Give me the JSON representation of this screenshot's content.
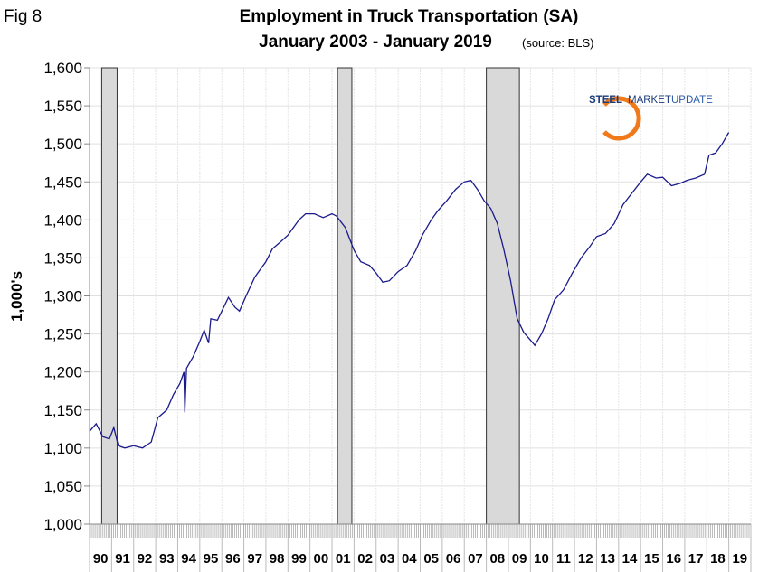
{
  "figure_label": "Fig 8",
  "logo_text": {
    "part1": "STEEL",
    "part2": "MARKET",
    "part3": "UPDATE"
  },
  "chart_data": {
    "type": "line",
    "title": "Employment in Truck Transportation (SA)",
    "subtitle": "January 2003 - January 2019",
    "source_note": "(source: BLS)",
    "ylabel": "1,000's",
    "xlabel": "",
    "ylim": [
      1000,
      1600
    ],
    "yticks": [
      1000,
      1050,
      1100,
      1150,
      1200,
      1250,
      1300,
      1350,
      1400,
      1450,
      1500,
      1550,
      1600
    ],
    "ytick_labels": [
      "1,000",
      "1,050",
      "1,100",
      "1,150",
      "1,200",
      "1,250",
      "1,300",
      "1,350",
      "1,400",
      "1,450",
      "1,500",
      "1,550",
      "1,600"
    ],
    "xlim": [
      1990,
      2020
    ],
    "xtick_labels": [
      "90",
      "91",
      "92",
      "93",
      "94",
      "95",
      "96",
      "97",
      "98",
      "99",
      "00",
      "01",
      "02",
      "03",
      "04",
      "05",
      "06",
      "07",
      "08",
      "09",
      "10",
      "11",
      "12",
      "13",
      "14",
      "15",
      "16",
      "17",
      "18",
      "19"
    ],
    "grid": true,
    "line_color": "#1a1a8c",
    "recession_color": "#d9d9d9",
    "recessions": [
      [
        1990.55,
        1991.25
      ],
      [
        2001.25,
        2001.9
      ],
      [
        2008.0,
        2009.5
      ]
    ],
    "series": [
      {
        "x": [
          1990.0,
          1990.3,
          1990.6,
          1990.9,
          1991.1,
          1991.3,
          1991.6,
          1992.0,
          1992.4,
          1992.8,
          1993.1,
          1993.5,
          1993.8,
          1994.1,
          1994.28,
          1994.32,
          1994.4,
          1994.7,
          1995.0,
          1995.2,
          1995.4,
          1995.5,
          1995.8,
          1996.0,
          1996.3,
          1996.6,
          1996.8,
          1997.1,
          1997.5,
          1998.0,
          1998.3,
          1998.7,
          1999.0,
          1999.5,
          1999.8,
          2000.2,
          2000.6,
          2001.0,
          2001.2,
          2001.6,
          2002.0,
          2002.3,
          2002.7,
          2003.0,
          2003.3,
          2003.6,
          2004.0,
          2004.4,
          2004.8,
          2005.1,
          2005.5,
          2005.8,
          2006.2,
          2006.6,
          2007.0,
          2007.3,
          2007.6,
          2007.9,
          2008.2,
          2008.5,
          2008.8,
          2009.1,
          2009.4,
          2009.7,
          2010.0,
          2010.2,
          2010.5,
          2010.8,
          2011.1,
          2011.5,
          2011.9,
          2012.3,
          2012.7,
          2013.0,
          2013.4,
          2013.8,
          2014.2,
          2014.6,
          2015.0,
          2015.3,
          2015.7,
          2016.0,
          2016.4,
          2016.8,
          2017.1,
          2017.5,
          2017.9,
          2018.1,
          2018.4,
          2018.7,
          2019.0
        ],
        "values": [
          1122,
          1132,
          1115,
          1112,
          1127,
          1103,
          1100,
          1103,
          1100,
          1108,
          1140,
          1150,
          1170,
          1185,
          1200,
          1147,
          1205,
          1220,
          1240,
          1255,
          1238,
          1270,
          1268,
          1280,
          1298,
          1285,
          1280,
          1300,
          1325,
          1345,
          1362,
          1372,
          1380,
          1400,
          1408,
          1408,
          1403,
          1408,
          1405,
          1390,
          1360,
          1345,
          1340,
          1330,
          1318,
          1320,
          1332,
          1340,
          1360,
          1380,
          1400,
          1412,
          1425,
          1440,
          1450,
          1452,
          1440,
          1425,
          1415,
          1395,
          1360,
          1320,
          1270,
          1252,
          1242,
          1235,
          1250,
          1270,
          1295,
          1308,
          1330,
          1350,
          1365,
          1378,
          1382,
          1395,
          1420,
          1435,
          1450,
          1460,
          1455,
          1456,
          1445,
          1448,
          1452,
          1455,
          1460,
          1485,
          1488,
          1500,
          1515
        ]
      }
    ]
  }
}
